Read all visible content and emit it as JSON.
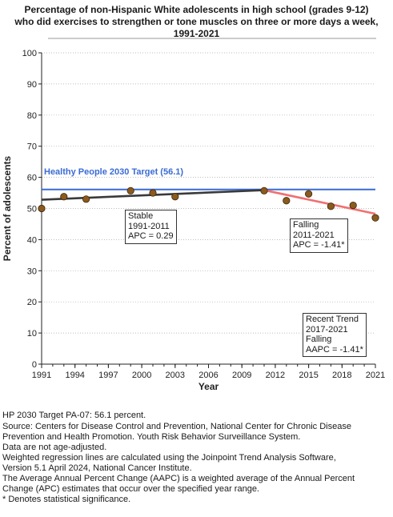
{
  "title": [
    "Percentage of non-Hispanic White adolescents in high school (grades 9-12)",
    "who did exercises to strengthen or tone muscles on three or more days a week,",
    "1991-2021"
  ],
  "chart_data": {
    "type": "scatter",
    "title": "Percentage of non-Hispanic White adolescents in high school (grades 9-12) who did exercises to strengthen or tone muscles on three or more days a week, 1991-2021",
    "xlabel": "Year",
    "ylabel": "Percent of adolescents",
    "xlim": [
      1991,
      2021
    ],
    "ylim": [
      0,
      100
    ],
    "xticks": [
      1991,
      1994,
      1997,
      2000,
      2003,
      2006,
      2009,
      2012,
      2015,
      2018,
      2021
    ],
    "yticks": [
      0,
      10,
      20,
      30,
      40,
      50,
      60,
      70,
      80,
      90,
      100
    ],
    "grid": true,
    "points": {
      "x": [
        1991,
        1993,
        1995,
        1999,
        2001,
        2003,
        2011,
        2013,
        2015,
        2017,
        2019,
        2021
      ],
      "y": [
        50.0,
        53.8,
        53.0,
        55.7,
        55.0,
        53.8,
        55.7,
        52.5,
        54.7,
        50.7,
        51.0,
        47.0
      ]
    },
    "trend_segments": [
      {
        "x": [
          1991,
          2011
        ],
        "y": [
          52.8,
          55.9
        ],
        "color": "#3a3a3a"
      },
      {
        "x": [
          2011,
          2021
        ],
        "y": [
          55.9,
          48.3
        ],
        "color": "#f07070"
      }
    ],
    "target": {
      "value": 56.1,
      "label": "Healthy People 2030 Target (56.1)",
      "color": "#3a6bd4"
    },
    "annotations": [
      {
        "lines": [
          "Stable",
          "1991-2011",
          "APC =  0.29"
        ]
      },
      {
        "lines": [
          "Falling",
          "2011-2021",
          "APC = -1.41*"
        ]
      },
      {
        "lines": [
          "Recent Trend",
          "2017-2021",
          "Falling",
          "AAPC = -1.41*"
        ]
      }
    ],
    "point_color": "#8b5a1e"
  },
  "notes": [
    "HP 2030 Target PA-07: 56.1 percent.",
    "Source: Centers for Disease Control and Prevention, National Center for Chronic Disease",
    "Prevention and Health Promotion. Youth Risk Behavior Surveillance System.",
    "Data are not age-adjusted.",
    "Weighted regression lines are calculated using the Joinpoint Trend Analysis Software,",
    "Version 5.1 April 2024, National Cancer Institute.",
    "The Average Annual Percent Change (AAPC) is a weighted average of the Annual Percent",
    "Change (APC) estimates that occur over the specified year range.",
    "* Denotes statistical significance."
  ]
}
